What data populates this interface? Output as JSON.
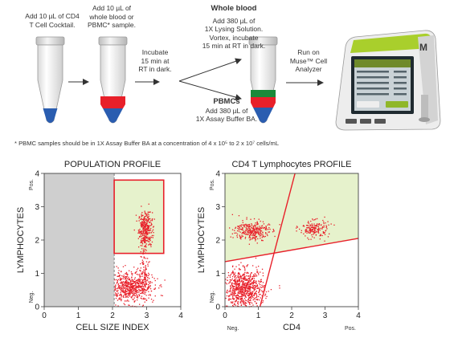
{
  "workflow": {
    "step1": [
      "Add 10 µL of CD4",
      "T Cell Cocktail."
    ],
    "step2": [
      "Add 10 µL of",
      "whole blood or",
      "PBMC* sample."
    ],
    "incubate": [
      "Incubate",
      "15 min at",
      "RT in dark."
    ],
    "whole_blood": {
      "title": "Whole blood",
      "lines": [
        "Add 380 µL of",
        "1X Lysing Solution.",
        "Vortex, incubate",
        "15 min at RT in dark."
      ]
    },
    "pbmc": {
      "title": "PBMCs",
      "lines": [
        "Add 380 µL of",
        "1X Assay Buffer BA."
      ]
    },
    "run": [
      "Run on",
      "Muse™ Cell",
      "Analyzer"
    ],
    "instrument_logo": "M",
    "footnote": "* PBMC samples should be in 1X Assay Buffer BA at a concentration of 4 x 10⁵ to 2 x 10⁷ cells/mL"
  },
  "colors": {
    "red": "#e8202a",
    "blue": "#2a5db0",
    "green": "#1a8a3a",
    "gate_fill": "#e6f2cc",
    "gray_region": "#cfcfcf",
    "lime": "#a9cf2c"
  },
  "chart_data": [
    {
      "type": "scatter",
      "title": "POPULATION PROFILE",
      "xlabel": "CELL SIZE INDEX",
      "ylabel": "LYMPHOCYTES",
      "y_end_labels": {
        "low": "Neg.",
        "high": "Pos."
      },
      "xlim": [
        0,
        4
      ],
      "ylim": [
        0,
        4
      ],
      "xticks": [
        "0",
        "1",
        "2",
        "3",
        "4"
      ],
      "yticks": [
        "0",
        "1",
        "2",
        "3",
        "4"
      ],
      "excluded_region_x": [
        0,
        2.05
      ],
      "gate": {
        "x": [
          2.05,
          3.5
        ],
        "y": [
          1.6,
          3.8
        ]
      },
      "clusters": [
        {
          "cx": 2.95,
          "cy": 2.35,
          "sx": 0.1,
          "sy": 0.25,
          "n": 330
        },
        {
          "cx": 2.5,
          "cy": 0.6,
          "sx": 0.35,
          "sy": 0.22,
          "n": 650
        },
        {
          "cx": 2.92,
          "cy": 1.1,
          "sx": 0.08,
          "sy": 0.45,
          "n": 110
        }
      ]
    },
    {
      "type": "scatter",
      "title": "CD4 T Lymphocytes PROFILE",
      "xlabel": "CD4",
      "ylabel": "LYMPHOCYTES",
      "x_end_labels": {
        "low": "Neg.",
        "high": "Pos."
      },
      "y_end_labels": {
        "low": "Neg.",
        "high": "Pos."
      },
      "xlim": [
        0,
        4
      ],
      "ylim": [
        0,
        4
      ],
      "xticks": [
        "0",
        "1",
        "2",
        "3",
        "4"
      ],
      "yticks": [
        "0",
        "1",
        "2",
        "3",
        "4"
      ],
      "gate_lines": [
        {
          "x1": 1.05,
          "y1": 0,
          "x2": 2.1,
          "y2": 4
        },
        {
          "x1": 0,
          "y1": 1.35,
          "x2": 4,
          "y2": 2.05
        }
      ],
      "clusters": [
        {
          "cx": 0.55,
          "cy": 0.55,
          "sx": 0.3,
          "sy": 0.28,
          "n": 800
        },
        {
          "cx": 0.8,
          "cy": 2.3,
          "sx": 0.25,
          "sy": 0.15,
          "n": 300
        },
        {
          "cx": 2.65,
          "cy": 2.35,
          "sx": 0.22,
          "sy": 0.13,
          "n": 170
        }
      ]
    }
  ]
}
